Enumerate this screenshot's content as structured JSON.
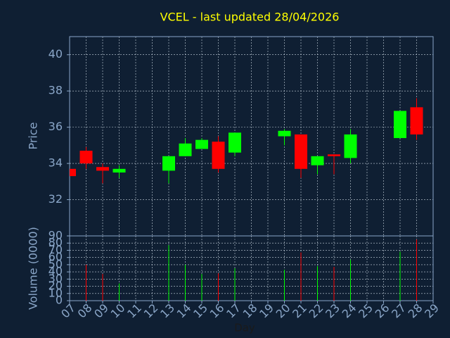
{
  "chart_data": [
    {
      "type": "candlestick",
      "title": "VCEL - last updated 28/04/2026",
      "y_label": "Price",
      "x": [
        7,
        8,
        9,
        10,
        13,
        14,
        15,
        16,
        17,
        20,
        21,
        22,
        23,
        24,
        27,
        28
      ],
      "open": [
        33.7,
        34.7,
        33.8,
        33.5,
        33.6,
        34.4,
        34.8,
        35.2,
        34.6,
        35.5,
        35.6,
        33.9,
        34.5,
        34.3,
        35.4,
        37.1
      ],
      "high": [
        33.7,
        34.9,
        34.0,
        33.9,
        34.4,
        35.4,
        35.4,
        35.5,
        35.7,
        35.9,
        35.6,
        34.4,
        34.5,
        35.9,
        36.9,
        37.6
      ],
      "low": [
        33.3,
        33.7,
        32.9,
        33.2,
        32.9,
        34.4,
        34.8,
        33.5,
        34.4,
        35.0,
        33.2,
        33.4,
        33.4,
        34.0,
        35.4,
        35.3
      ],
      "close": [
        33.3,
        34.0,
        33.6,
        33.7,
        34.4,
        35.1,
        35.3,
        33.7,
        35.7,
        35.8,
        33.7,
        34.4,
        34.4,
        35.6,
        36.9,
        35.6
      ],
      "up_color": "#00ff00",
      "down_color": "#ff0000",
      "xlim": [
        7,
        29
      ],
      "ylim": [
        30,
        41
      ],
      "yticks": [
        32,
        34,
        36,
        38,
        40
      ],
      "grid": true
    },
    {
      "type": "bar",
      "y_label": "Volume (0000)",
      "x_label": "Day",
      "x": [
        7,
        8,
        9,
        10,
        13,
        14,
        15,
        16,
        17,
        20,
        21,
        22,
        23,
        24,
        27,
        28
      ],
      "values": [
        0,
        50,
        37,
        24,
        77,
        50,
        37,
        38,
        45,
        43,
        67,
        48,
        47,
        57,
        68,
        85
      ],
      "colors": [
        "#ff0000",
        "#ff0000",
        "#ff0000",
        "#00ff00",
        "#00ff00",
        "#00ff00",
        "#00ff00",
        "#ff0000",
        "#00ff00",
        "#00ff00",
        "#ff0000",
        "#00ff00",
        "#ff0000",
        "#00ff00",
        "#00ff00",
        "#ff0000"
      ],
      "xlim": [
        7,
        29
      ],
      "xticks": [
        {
          "value": 7,
          "label": "07"
        },
        {
          "value": 8,
          "label": "08"
        },
        {
          "value": 9,
          "label": "09"
        },
        10,
        11,
        12,
        13,
        14,
        15,
        16,
        17,
        18,
        19,
        20,
        21,
        22,
        23,
        24,
        25,
        26,
        27,
        28,
        29
      ],
      "ylim": [
        0,
        90
      ],
      "yticks": [
        0,
        10,
        20,
        30,
        40,
        50,
        60,
        70,
        80,
        90
      ],
      "grid": true
    }
  ]
}
